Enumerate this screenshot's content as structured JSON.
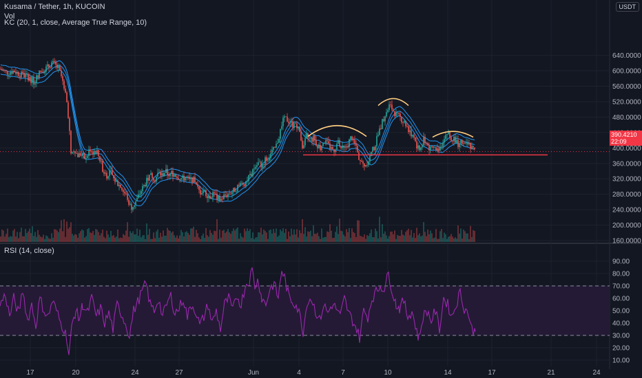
{
  "header": {
    "title": "Kusama / Tether, 1h, KUCOIN",
    "vol_label": "Vol",
    "indicator_label": "KC (20, 1, close, Average True Range, 10)",
    "currency": "USDT"
  },
  "price_tag": {
    "price": "390.4210",
    "countdown": "22:09",
    "color": "#f23645"
  },
  "rsi_pane": {
    "label": "RSI (14, close)",
    "upper_band": 70,
    "lower_band": 30
  },
  "colors": {
    "up": "#26a69a",
    "down": "#ef5350",
    "keltner": "#2196f3",
    "rsi": "#9c27b0",
    "support": "#f23645",
    "pattern_arcs": "#ffcc80",
    "rsi_band_fill": "#241a35"
  },
  "annotations": {
    "support_level": 382,
    "pattern": "head-and-shoulders arcs over neckline"
  },
  "chart_data": [
    {
      "type": "candlestick",
      "title": "Kusama / Tether, 1h, KUCOIN",
      "ylim": [
        160,
        650
      ],
      "y_ticks": [
        "640.0000",
        "600.0000",
        "560.0000",
        "520.0000",
        "480.0000",
        "440.0000",
        "400.0000",
        "360.0000",
        "320.0000",
        "280.0000",
        "240.0000",
        "200.0000",
        "160.0000"
      ],
      "x_ticks": [
        "17",
        "20",
        "24",
        "27",
        "Jun",
        "4",
        "7",
        "10",
        "14",
        "17",
        "21",
        "24"
      ],
      "series_overlay": "Keltner Channel (upper / basis / lower)",
      "close_path": [
        [
          0,
          605
        ],
        [
          10,
          595
        ],
        [
          20,
          600
        ],
        [
          30,
          590
        ],
        [
          40,
          585
        ],
        [
          50,
          570
        ],
        [
          55,
          590
        ],
        [
          60,
          600
        ],
        [
          70,
          610
        ],
        [
          75,
          620
        ],
        [
          80,
          615
        ],
        [
          85,
          605
        ],
        [
          90,
          580
        ],
        [
          95,
          550
        ],
        [
          100,
          470
        ],
        [
          103,
          380
        ],
        [
          108,
          400
        ],
        [
          112,
          380
        ],
        [
          118,
          385
        ],
        [
          125,
          370
        ],
        [
          130,
          400
        ],
        [
          135,
          390
        ],
        [
          140,
          395
        ],
        [
          145,
          370
        ],
        [
          150,
          340
        ],
        [
          155,
          330
        ],
        [
          160,
          340
        ],
        [
          165,
          320
        ],
        [
          170,
          310
        ],
        [
          175,
          300
        ],
        [
          180,
          285
        ],
        [
          185,
          270
        ],
        [
          190,
          245
        ],
        [
          195,
          255
        ],
        [
          200,
          270
        ],
        [
          205,
          290
        ],
        [
          210,
          305
        ],
        [
          215,
          320
        ],
        [
          220,
          330
        ],
        [
          225,
          320
        ],
        [
          230,
          335
        ],
        [
          235,
          330
        ],
        [
          240,
          340
        ],
        [
          245,
          330
        ],
        [
          250,
          335
        ],
        [
          255,
          330
        ],
        [
          260,
          325
        ],
        [
          265,
          320
        ],
        [
          270,
          325
        ],
        [
          275,
          315
        ],
        [
          280,
          320
        ],
        [
          285,
          300
        ],
        [
          290,
          285
        ],
        [
          295,
          290
        ],
        [
          300,
          280
        ],
        [
          305,
          275
        ],
        [
          310,
          285
        ],
        [
          315,
          270
        ],
        [
          320,
          265
        ],
        [
          325,
          275
        ],
        [
          330,
          280
        ],
        [
          335,
          285
        ],
        [
          340,
          290
        ],
        [
          345,
          300
        ],
        [
          350,
          305
        ],
        [
          355,
          310
        ],
        [
          360,
          320
        ],
        [
          365,
          330
        ],
        [
          370,
          350
        ],
        [
          375,
          360
        ],
        [
          380,
          355
        ],
        [
          385,
          370
        ],
        [
          390,
          375
        ],
        [
          395,
          390
        ],
        [
          400,
          400
        ],
        [
          405,
          430
        ],
        [
          410,
          470
        ],
        [
          415,
          475
        ],
        [
          420,
          470
        ],
        [
          425,
          460
        ],
        [
          430,
          465
        ],
        [
          435,
          440
        ],
        [
          440,
          400
        ],
        [
          445,
          430
        ],
        [
          450,
          420
        ],
        [
          455,
          425
        ],
        [
          460,
          410
        ],
        [
          465,
          400
        ],
        [
          470,
          420
        ],
        [
          475,
          410
        ],
        [
          480,
          400
        ],
        [
          485,
          395
        ],
        [
          490,
          415
        ],
        [
          495,
          400
        ],
        [
          500,
          395
        ],
        [
          505,
          410
        ],
        [
          510,
          430
        ],
        [
          515,
          410
        ],
        [
          520,
          380
        ],
        [
          525,
          360
        ],
        [
          530,
          355
        ],
        [
          535,
          370
        ],
        [
          540,
          390
        ],
        [
          545,
          410
        ],
        [
          550,
          440
        ],
        [
          555,
          470
        ],
        [
          560,
          490
        ],
        [
          565,
          510
        ],
        [
          570,
          500
        ],
        [
          575,
          485
        ],
        [
          580,
          480
        ],
        [
          585,
          470
        ],
        [
          590,
          460
        ],
        [
          595,
          440
        ],
        [
          600,
          430
        ],
        [
          605,
          400
        ],
        [
          610,
          395
        ],
        [
          615,
          420
        ],
        [
          620,
          410
        ],
        [
          625,
          395
        ],
        [
          630,
          400
        ],
        [
          635,
          395
        ],
        [
          640,
          405
        ],
        [
          645,
          430
        ],
        [
          650,
          440
        ],
        [
          655,
          420
        ],
        [
          660,
          425
        ],
        [
          665,
          410
        ],
        [
          670,
          415
        ],
        [
          675,
          405
        ],
        [
          680,
          410
        ],
        [
          685,
          400
        ],
        [
          690,
          390
        ]
      ],
      "support_level": 382,
      "support_x_range": [
        440,
        795
      ],
      "pattern_arcs": [
        {
          "x0": 447,
          "x1": 532,
          "y_end": 430,
          "y_peak": 458
        },
        {
          "x0": 549,
          "x1": 593,
          "y_end": 510,
          "y_peak": 528
        },
        {
          "x0": 628,
          "x1": 687,
          "y_end": 428,
          "y_peak": 443
        }
      ],
      "last_price": 390.421
    },
    {
      "type": "line",
      "title": "RSI (14, close)",
      "ylim": [
        5,
        95
      ],
      "y_ticks": [
        "90.00",
        "80.00",
        "70.00",
        "60.00",
        "50.00",
        "40.00",
        "30.00",
        "20.00",
        "10.00"
      ],
      "bands": [
        30,
        70
      ],
      "series": [
        {
          "values": [
            [
              0,
              55
            ],
            [
              8,
              63
            ],
            [
              14,
              45
            ],
            [
              20,
              60
            ],
            [
              27,
              48
            ],
            [
              33,
              67
            ],
            [
              40,
              42
            ],
            [
              46,
              55
            ],
            [
              52,
              38
            ],
            [
              58,
              60
            ],
            [
              64,
              50
            ],
            [
              70,
              45
            ],
            [
              76,
              58
            ],
            [
              82,
              50
            ],
            [
              88,
              40
            ],
            [
              93,
              35
            ],
            [
              97,
              28
            ],
            [
              100,
              14
            ],
            [
              105,
              40
            ],
            [
              110,
              50
            ],
            [
              115,
              43
            ],
            [
              120,
              55
            ],
            [
              127,
              48
            ],
            [
              133,
              60
            ],
            [
              140,
              45
            ],
            [
              146,
              52
            ],
            [
              152,
              40
            ],
            [
              158,
              48
            ],
            [
              164,
              35
            ],
            [
              170,
              55
            ],
            [
              176,
              48
            ],
            [
              182,
              40
            ],
            [
              188,
              30
            ],
            [
              194,
              50
            ],
            [
              200,
              57
            ],
            [
              206,
              65
            ],
            [
              212,
              72
            ],
            [
              218,
              55
            ],
            [
              224,
              50
            ],
            [
              230,
              60
            ],
            [
              236,
              45
            ],
            [
              242,
              55
            ],
            [
              248,
              62
            ],
            [
              254,
              48
            ],
            [
              260,
              52
            ],
            [
              266,
              60
            ],
            [
              272,
              45
            ],
            [
              278,
              55
            ],
            [
              284,
              50
            ],
            [
              290,
              38
            ],
            [
              296,
              45
            ],
            [
              302,
              55
            ],
            [
              308,
              40
            ],
            [
              314,
              50
            ],
            [
              320,
              35
            ],
            [
              326,
              55
            ],
            [
              332,
              60
            ],
            [
              338,
              50
            ],
            [
              344,
              62
            ],
            [
              350,
              55
            ],
            [
              356,
              70
            ],
            [
              362,
              75
            ],
            [
              366,
              83
            ],
            [
              370,
              70
            ],
            [
              375,
              75
            ],
            [
              380,
              60
            ],
            [
              386,
              55
            ],
            [
              392,
              68
            ],
            [
              398,
              72
            ],
            [
              404,
              60
            ],
            [
              409,
              83
            ],
            [
              414,
              75
            ],
            [
              419,
              62
            ],
            [
              424,
              58
            ],
            [
              430,
              55
            ],
            [
              436,
              45
            ],
            [
              440,
              33
            ],
            [
              446,
              58
            ],
            [
              452,
              60
            ],
            [
              458,
              50
            ],
            [
              464,
              42
            ],
            [
              470,
              55
            ],
            [
              476,
              48
            ],
            [
              482,
              55
            ],
            [
              488,
              52
            ],
            [
              494,
              45
            ],
            [
              500,
              60
            ],
            [
              506,
              48
            ],
            [
              512,
              42
            ],
            [
              518,
              35
            ],
            [
              522,
              28
            ],
            [
              528,
              50
            ],
            [
              534,
              45
            ],
            [
              540,
              60
            ],
            [
              546,
              65
            ],
            [
              552,
              70
            ],
            [
              558,
              68
            ],
            [
              564,
              80
            ],
            [
              570,
              65
            ],
            [
              575,
              55
            ],
            [
              580,
              52
            ],
            [
              586,
              58
            ],
            [
              592,
              45
            ],
            [
              598,
              50
            ],
            [
              603,
              38
            ],
            [
              608,
              27
            ],
            [
              614,
              45
            ],
            [
              620,
              50
            ],
            [
              626,
              42
            ],
            [
              632,
              50
            ],
            [
              638,
              35
            ],
            [
              644,
              60
            ],
            [
              650,
              55
            ],
            [
              656,
              45
            ],
            [
              662,
              55
            ],
            [
              668,
              65
            ],
            [
              674,
              52
            ],
            [
              680,
              48
            ],
            [
              685,
              35
            ],
            [
              690,
              33
            ]
          ]
        }
      ]
    }
  ]
}
